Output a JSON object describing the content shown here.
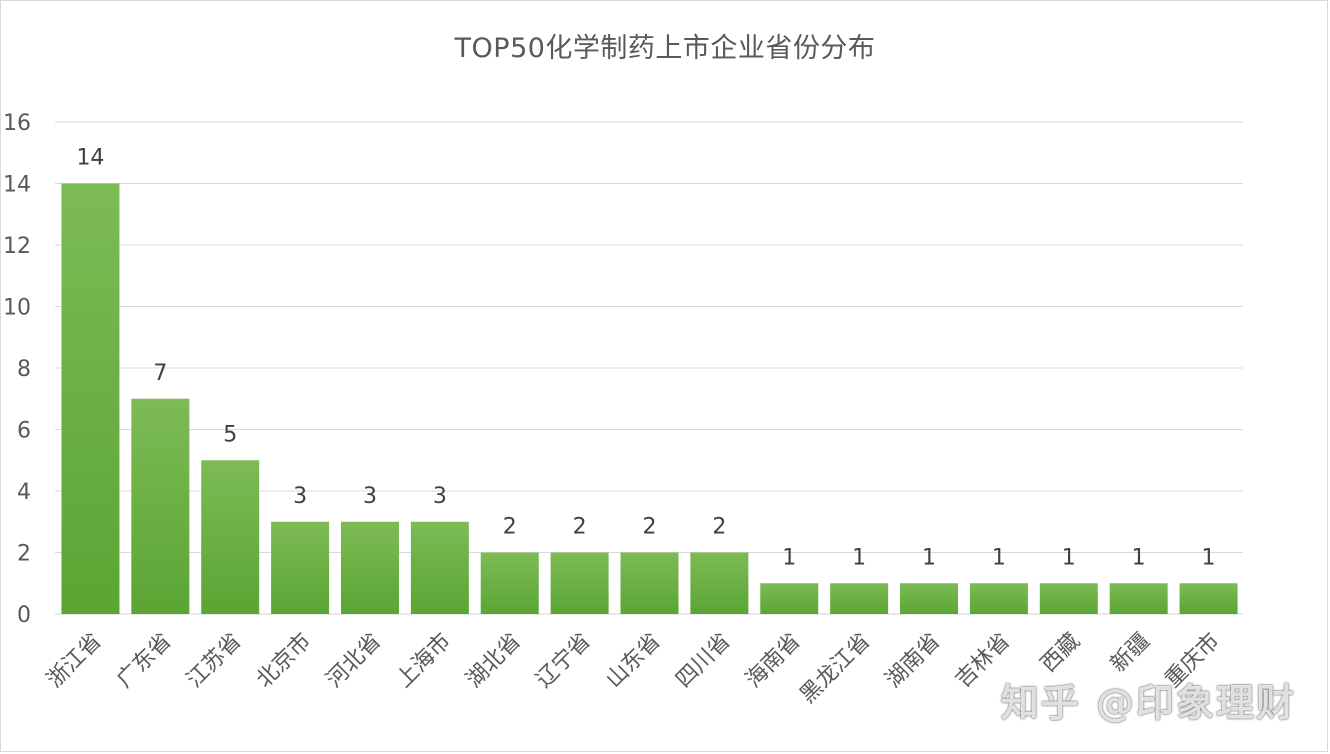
{
  "chart_data": {
    "type": "bar",
    "title": "TOP50化学制药上市企业省份分布",
    "categories": [
      "浙江省",
      "广东省",
      "江苏省",
      "北京市",
      "河北省",
      "上海市",
      "湖北省",
      "辽宁省",
      "山东省",
      "四川省",
      "海南省",
      "黑龙江省",
      "湖南省",
      "吉林省",
      "西藏",
      "新疆",
      "重庆市"
    ],
    "values": [
      14,
      7,
      5,
      3,
      3,
      3,
      2,
      2,
      2,
      2,
      1,
      1,
      1,
      1,
      1,
      1,
      1
    ],
    "ylim": [
      0,
      16
    ],
    "yticks": [
      0,
      2,
      4,
      6,
      8,
      10,
      12,
      14,
      16
    ],
    "xlabel": "",
    "ylabel": "",
    "grid": true,
    "bar_color_top": "#7dbb55",
    "bar_color_bottom": "#5aa534"
  },
  "watermark": "知乎 @印象理财"
}
